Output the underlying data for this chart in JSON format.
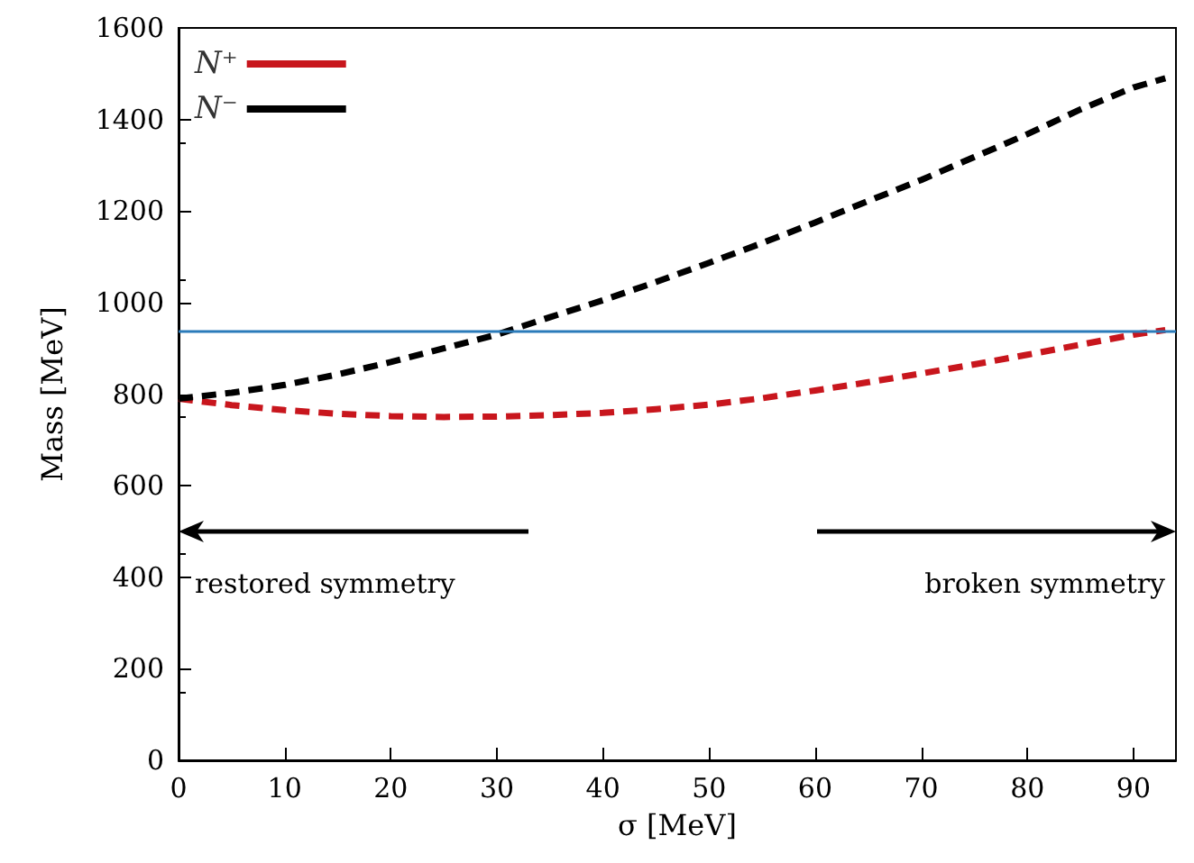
{
  "chart_data": {
    "type": "line",
    "xlabel": "σ [MeV]",
    "ylabel": "Mass [MeV]",
    "x": [
      0,
      5,
      10,
      15,
      20,
      25,
      30,
      35,
      40,
      45,
      50,
      55,
      60,
      65,
      70,
      75,
      80,
      85,
      90,
      93
    ],
    "series": [
      {
        "name": "N⁺",
        "color": "#c8161d",
        "line_style": "dashed",
        "values": [
          790,
          776,
          765,
          757,
          752,
          750,
          751,
          754,
          759,
          767,
          777,
          791,
          808,
          826,
          845,
          865,
          886,
          908,
          930,
          940
        ]
      },
      {
        "name": "N⁻",
        "color": "#000000",
        "line_style": "dashed",
        "values": [
          790,
          803,
          820,
          843,
          870,
          900,
          930,
          968,
          1005,
          1045,
          1087,
          1130,
          1175,
          1222,
          1268,
          1318,
          1368,
          1422,
          1470,
          1490
        ]
      }
    ],
    "xlim": [
      0,
      94
    ],
    "ylim": [
      0,
      1600
    ],
    "xticks": [
      0,
      10,
      20,
      30,
      40,
      50,
      60,
      70,
      80,
      90
    ],
    "yticks": [
      0,
      200,
      400,
      600,
      800,
      1000,
      1200,
      1400,
      1600
    ],
    "ref_lines": [
      {
        "axis": "y",
        "value": 939,
        "color": "#2b7bba"
      }
    ],
    "annotations": [
      "restored symmetry",
      "broken symmetry"
    ],
    "legend": "top left",
    "grid": false,
    "marker": "none"
  }
}
